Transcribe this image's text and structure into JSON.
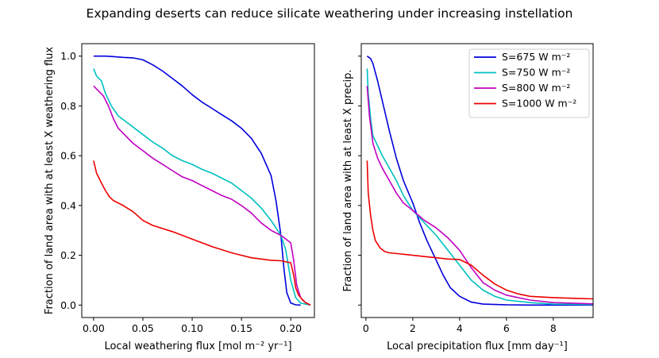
{
  "figure": {
    "title": "Expanding deserts can reduce silicate weathering under increasing instellation"
  },
  "chart_data": [
    {
      "type": "line",
      "xlabel": "Local weathering flux [mol m⁻² yr⁻¹]",
      "ylabel": "Fraction of land area with at least X weathering flux",
      "xlim": [
        -0.012,
        0.224
      ],
      "ylim": [
        -0.05,
        1.05
      ],
      "xticks": [
        0.0,
        0.05,
        0.1,
        0.15,
        0.2
      ],
      "xtick_labels": [
        "0.00",
        "0.05",
        "0.10",
        "0.15",
        "0.20"
      ],
      "yticks": [
        0.0,
        0.2,
        0.4,
        0.6,
        0.8,
        1.0
      ],
      "ytick_labels": [
        "0.0",
        "0.2",
        "0.4",
        "0.6",
        "0.8",
        "1.0"
      ],
      "series": [
        {
          "name": "S=675",
          "color": "#0000dd",
          "x": [
            0.0,
            0.005,
            0.012,
            0.02,
            0.03,
            0.04,
            0.05,
            0.06,
            0.07,
            0.08,
            0.09,
            0.1,
            0.11,
            0.12,
            0.13,
            0.14,
            0.15,
            0.16,
            0.17,
            0.18,
            0.185,
            0.19,
            0.193,
            0.196,
            0.2,
            0.205,
            0.21
          ],
          "y": [
            1.0,
            1.0,
            1.0,
            0.998,
            0.995,
            0.993,
            0.985,
            0.965,
            0.94,
            0.91,
            0.88,
            0.845,
            0.815,
            0.79,
            0.765,
            0.74,
            0.71,
            0.67,
            0.61,
            0.52,
            0.42,
            0.28,
            0.15,
            0.05,
            0.008,
            0.001,
            0.0
          ]
        },
        {
          "name": "S=750",
          "color": "#00c0c0",
          "x": [
            0.0,
            0.003,
            0.008,
            0.012,
            0.018,
            0.025,
            0.035,
            0.045,
            0.055,
            0.06,
            0.07,
            0.08,
            0.09,
            0.1,
            0.11,
            0.12,
            0.13,
            0.14,
            0.15,
            0.16,
            0.17,
            0.18,
            0.19,
            0.195,
            0.2,
            0.205,
            0.21,
            0.22
          ],
          "y": [
            0.95,
            0.92,
            0.9,
            0.85,
            0.8,
            0.76,
            0.73,
            0.7,
            0.67,
            0.655,
            0.63,
            0.6,
            0.58,
            0.565,
            0.545,
            0.53,
            0.51,
            0.49,
            0.46,
            0.43,
            0.39,
            0.34,
            0.28,
            0.22,
            0.1,
            0.03,
            0.008,
            0.0
          ]
        },
        {
          "name": "S=800",
          "color": "#c000c0",
          "x": [
            0.0,
            0.005,
            0.01,
            0.015,
            0.02,
            0.025,
            0.03,
            0.04,
            0.05,
            0.06,
            0.07,
            0.08,
            0.09,
            0.1,
            0.11,
            0.12,
            0.13,
            0.14,
            0.15,
            0.16,
            0.17,
            0.18,
            0.19,
            0.2,
            0.203,
            0.206,
            0.21,
            0.215,
            0.22
          ],
          "y": [
            0.88,
            0.86,
            0.84,
            0.8,
            0.75,
            0.71,
            0.69,
            0.65,
            0.62,
            0.59,
            0.565,
            0.54,
            0.515,
            0.5,
            0.48,
            0.46,
            0.44,
            0.425,
            0.4,
            0.37,
            0.33,
            0.3,
            0.28,
            0.25,
            0.18,
            0.08,
            0.03,
            0.01,
            0.0
          ]
        },
        {
          "name": "S=1000",
          "color": "#ee0000",
          "x": [
            0.0,
            0.003,
            0.008,
            0.012,
            0.016,
            0.02,
            0.03,
            0.04,
            0.05,
            0.06,
            0.08,
            0.1,
            0.12,
            0.14,
            0.16,
            0.18,
            0.19,
            0.2,
            0.203,
            0.205,
            0.208,
            0.212,
            0.215,
            0.22
          ],
          "y": [
            0.58,
            0.53,
            0.49,
            0.46,
            0.435,
            0.42,
            0.4,
            0.375,
            0.34,
            0.32,
            0.295,
            0.265,
            0.235,
            0.21,
            0.19,
            0.18,
            0.178,
            0.17,
            0.12,
            0.07,
            0.04,
            0.02,
            0.01,
            0.0
          ]
        }
      ]
    },
    {
      "type": "line",
      "xlabel": "Local precipitation flux [mm day⁻¹]",
      "ylabel": "Fraction of land area with at least X precip.",
      "xlim": [
        -0.2,
        9.7
      ],
      "ylim": [
        -0.05,
        1.05
      ],
      "xticks": [
        0,
        2,
        4,
        6,
        8
      ],
      "xtick_labels": [
        "0",
        "2",
        "4",
        "6",
        "8"
      ],
      "yticks": [
        0.0,
        0.2,
        0.4,
        0.6,
        0.8,
        1.0
      ],
      "legend": {
        "placement": "upper-right",
        "entries": [
          "S=675 W m⁻²",
          "S=750 W m⁻²",
          "S=800 W m⁻²",
          "S=1000 W m⁻²"
        ]
      },
      "series": [
        {
          "name": "S=675 W m⁻²",
          "color": "#0000dd",
          "x": [
            0.05,
            0.2,
            0.3,
            0.5,
            0.7,
            1.0,
            1.3,
            1.6,
            2.0,
            2.3,
            2.6,
            3.0,
            3.3,
            3.6,
            4.0,
            4.5,
            5.0,
            6.0,
            7.0,
            9.7
          ],
          "y": [
            1.0,
            0.99,
            0.97,
            0.9,
            0.82,
            0.7,
            0.59,
            0.5,
            0.41,
            0.33,
            0.26,
            0.18,
            0.12,
            0.07,
            0.035,
            0.012,
            0.004,
            0.001,
            0.0,
            0.0
          ]
        },
        {
          "name": "S=750 W m⁻²",
          "color": "#00c0c0",
          "x": [
            0.05,
            0.1,
            0.2,
            0.3,
            0.5,
            0.7,
            1.0,
            1.3,
            1.6,
            2.0,
            2.5,
            3.0,
            3.5,
            4.0,
            4.5,
            5.0,
            5.5,
            6.0,
            7.0,
            8.0,
            9.7
          ],
          "y": [
            0.95,
            0.85,
            0.75,
            0.68,
            0.64,
            0.6,
            0.55,
            0.5,
            0.44,
            0.38,
            0.33,
            0.28,
            0.22,
            0.16,
            0.1,
            0.06,
            0.035,
            0.02,
            0.01,
            0.004,
            0.002
          ]
        },
        {
          "name": "S=800 W m⁻²",
          "color": "#c000c0",
          "x": [
            0.05,
            0.15,
            0.3,
            0.5,
            0.7,
            1.0,
            1.3,
            1.6,
            2.0,
            2.5,
            3.0,
            3.5,
            4.0,
            4.5,
            5.0,
            5.5,
            6.0,
            7.0,
            8.0,
            9.7
          ],
          "y": [
            0.88,
            0.76,
            0.65,
            0.59,
            0.55,
            0.5,
            0.45,
            0.41,
            0.38,
            0.34,
            0.31,
            0.27,
            0.22,
            0.15,
            0.09,
            0.06,
            0.04,
            0.02,
            0.01,
            0.005
          ]
        },
        {
          "name": "S=1000 W m⁻²",
          "color": "#ee0000",
          "x": [
            0.05,
            0.1,
            0.2,
            0.3,
            0.4,
            0.6,
            0.8,
            1.0,
            1.5,
            2.0,
            2.5,
            3.0,
            3.5,
            4.0,
            4.5,
            5.0,
            5.5,
            6.0,
            6.5,
            7.0,
            8.0,
            9.0,
            9.7
          ],
          "y": [
            0.58,
            0.45,
            0.36,
            0.3,
            0.26,
            0.23,
            0.215,
            0.21,
            0.205,
            0.2,
            0.195,
            0.19,
            0.185,
            0.183,
            0.16,
            0.12,
            0.085,
            0.06,
            0.045,
            0.035,
            0.03,
            0.027,
            0.025
          ]
        }
      ]
    }
  ]
}
